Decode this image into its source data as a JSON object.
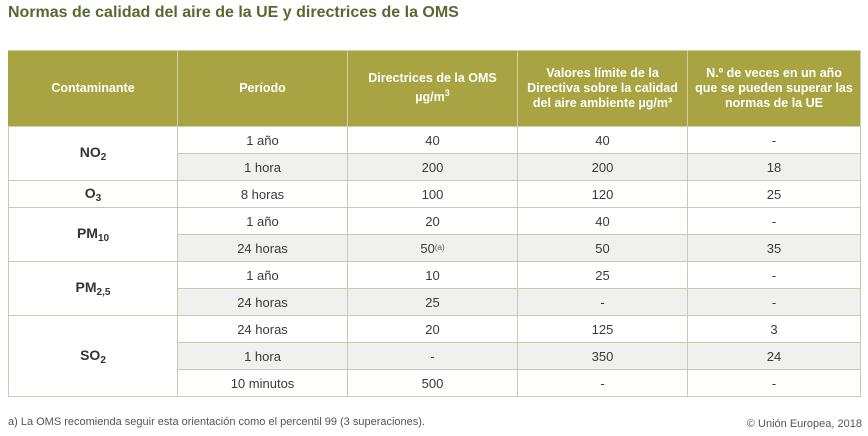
{
  "title": "Normas de calidad del aire de la UE y directrices de la OMS",
  "headers": {
    "pollutant": "Contaminante",
    "period": "Período",
    "who_line1": "Directrices de la OMS",
    "who_unit_base": "µg/m",
    "who_unit_exp": "3",
    "eu_limit": "Valores límite de la Directiva sobre la calidad del aire ambiente µg/m³",
    "exceed": "N.º de veces en un año que se pueden superar las normas de la UE"
  },
  "pollutants": {
    "no2": {
      "base": "NO",
      "sub": "2"
    },
    "o3": {
      "base": "O",
      "sub": "3"
    },
    "pm10": {
      "base": "PM",
      "sub": "10"
    },
    "pm25": {
      "base": "PM",
      "sub": "2,5"
    },
    "so2": {
      "base": "SO",
      "sub": "2"
    }
  },
  "rows": [
    {
      "period": "1 año",
      "who": "40",
      "eu": "40",
      "exceed": "-"
    },
    {
      "period": "1 hora",
      "who": "200",
      "eu": "200",
      "exceed": "18"
    },
    {
      "period": "8 horas",
      "who": "100",
      "eu": "120",
      "exceed": "25"
    },
    {
      "period": "1 año",
      "who": "20",
      "eu": "40",
      "exceed": "-"
    },
    {
      "period": "24 horas",
      "who": "50",
      "who_note": "(a)",
      "eu": "50",
      "exceed": "35"
    },
    {
      "period": "1 año",
      "who": "10",
      "eu": "25",
      "exceed": "-"
    },
    {
      "period": "24 horas",
      "who": "25",
      "eu": "-",
      "exceed": "-"
    },
    {
      "period": "24 horas",
      "who": "20",
      "eu": "125",
      "exceed": "3"
    },
    {
      "period": "1 hora",
      "who": "-",
      "eu": "350",
      "exceed": "24"
    },
    {
      "period": "10 minutos",
      "who": "500",
      "eu": "-",
      "exceed": "-"
    }
  ],
  "footnote": "a) La OMS recomienda seguir esta orientación como el percentil 99 (3 superaciones).",
  "copyright": "© Unión Europea, 2018",
  "colors": {
    "header_bg": "#a8a442",
    "title": "#566a2f",
    "row_alt": "#f0f0ee"
  }
}
